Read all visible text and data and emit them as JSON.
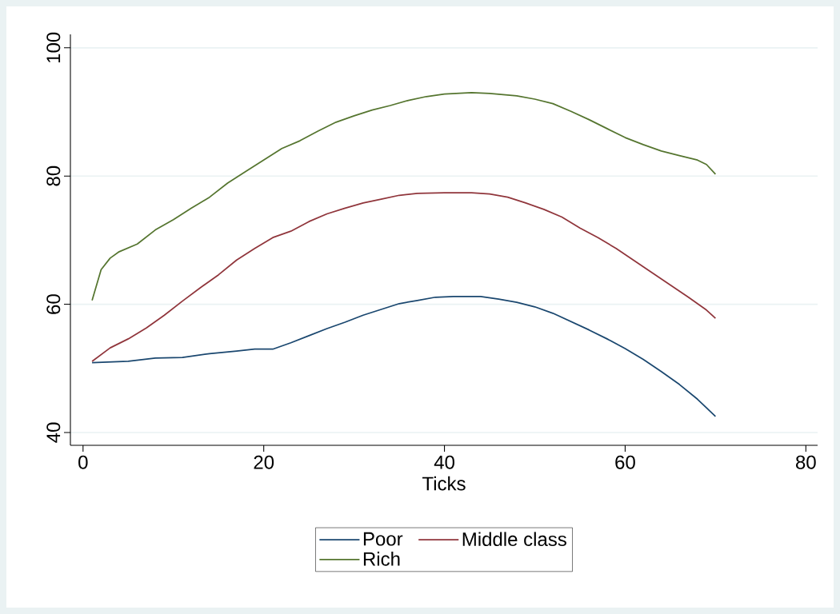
{
  "chart_data": {
    "type": "line",
    "xlabel": "Ticks",
    "xlim": [
      -1.4,
      81.3
    ],
    "ylim": [
      38,
      102.1
    ],
    "xticks": [
      0,
      20,
      40,
      60,
      80
    ],
    "yticks": [
      40,
      60,
      80,
      100
    ],
    "grid": "y",
    "legend": "bottom",
    "line_style": "solid",
    "marker": "none",
    "series": [
      {
        "name": "Poor",
        "color": "#1a476f",
        "x": [
          1,
          5,
          8,
          11,
          14,
          17,
          19,
          21,
          23,
          25,
          27,
          29,
          31,
          33,
          35,
          37,
          39,
          41,
          44,
          46,
          48,
          50,
          52,
          54,
          56,
          58,
          60,
          62,
          64,
          66,
          68,
          70
        ],
        "values": [
          50.9,
          51.1,
          51.6,
          51.7,
          52.3,
          52.7,
          53.0,
          53.0,
          54.0,
          55.1,
          56.2,
          57.2,
          58.3,
          59.2,
          60.1,
          60.6,
          61.1,
          61.2,
          61.2,
          60.8,
          60.3,
          59.6,
          58.6,
          57.3,
          56.0,
          54.6,
          53.1,
          51.4,
          49.5,
          47.5,
          45.2,
          42.5
        ]
      },
      {
        "name": "Middle class",
        "color": "#90353b",
        "x": [
          1,
          3,
          5,
          7,
          9,
          11,
          13,
          15,
          17,
          19,
          21,
          23,
          25,
          27,
          29,
          31,
          33,
          35,
          37,
          40,
          43,
          45,
          47,
          49,
          51,
          53,
          55,
          57,
          59,
          61,
          63,
          65,
          67,
          69,
          70
        ],
        "values": [
          51.1,
          53.2,
          54.6,
          56.3,
          58.3,
          60.5,
          62.6,
          64.6,
          66.9,
          68.7,
          70.4,
          71.4,
          72.9,
          74.1,
          75.0,
          75.8,
          76.4,
          77.0,
          77.3,
          77.4,
          77.4,
          77.2,
          76.7,
          75.8,
          74.8,
          73.6,
          71.9,
          70.4,
          68.7,
          66.8,
          64.9,
          63.0,
          61.1,
          59.1,
          57.8
        ]
      },
      {
        "name": "Rich",
        "color": "#55752f",
        "x": [
          1,
          2,
          3,
          4,
          6,
          8,
          10,
          12,
          14,
          16,
          18,
          20,
          22,
          24,
          26,
          28,
          30,
          32,
          34,
          36,
          38,
          40,
          43,
          45,
          48,
          50,
          52,
          54,
          56,
          58,
          60,
          62,
          64,
          66,
          68,
          69,
          70
        ],
        "values": [
          60.6,
          65.4,
          67.2,
          68.2,
          69.4,
          71.6,
          73.2,
          75.0,
          76.7,
          78.9,
          80.7,
          82.5,
          84.3,
          85.5,
          87.0,
          88.4,
          89.4,
          90.3,
          91.0,
          91.8,
          92.4,
          92.8,
          93.0,
          92.9,
          92.5,
          92.0,
          91.3,
          90.1,
          88.8,
          87.4,
          86.0,
          84.9,
          83.9,
          83.2,
          82.5,
          81.8,
          80.3
        ]
      }
    ]
  }
}
